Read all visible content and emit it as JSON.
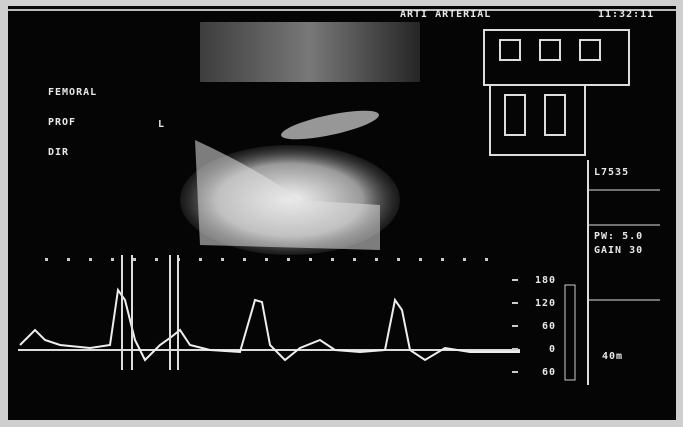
{
  "header": {
    "title": "ARTI ARTERIAL",
    "clock": "11:32:11"
  },
  "labels": {
    "vessel": "FEMORAL",
    "branch": "PROF",
    "side": "L",
    "direction": "DIR"
  },
  "panel": {
    "probe": "L7535",
    "mode": "PW: 5.0",
    "gain": "GAIN 30"
  },
  "scale": {
    "labels": [
      "180",
      "120",
      "60",
      "0",
      "60"
    ],
    "depth": "40m"
  }
}
